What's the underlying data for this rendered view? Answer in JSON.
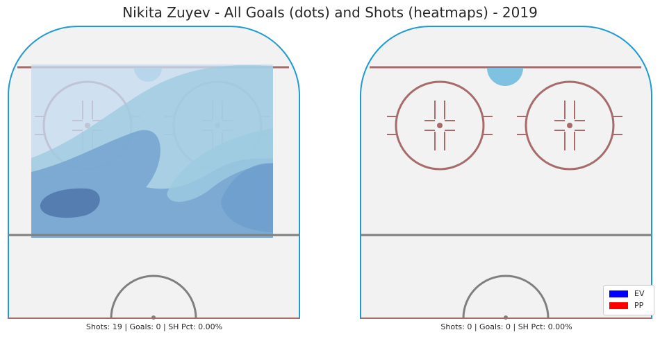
{
  "chart_data": {
    "type": "heatmap",
    "title": "Nikita Zuyev - All Goals (dots) and Shots (heatmaps) - 2019",
    "panels": [
      {
        "side": "left",
        "shots": 19,
        "goals": 0,
        "sh_pct": "0.00%",
        "stats_text": "Shots: 19 | Goals: 0 | SH Pct: 0.00%",
        "goal_dots": [],
        "heatmap": "shot-density contours covering offensive zone"
      },
      {
        "side": "right",
        "shots": 0,
        "goals": 0,
        "sh_pct": "0.00%",
        "stats_text": "Shots: 0 | Goals: 0 | SH Pct: 0.00%",
        "goal_dots": [],
        "heatmap": "none"
      }
    ],
    "legend": {
      "placement": "bottom-right",
      "entries": [
        {
          "label": "EV",
          "color": "#0000ff"
        },
        {
          "label": "PP",
          "color": "#ff0000"
        }
      ]
    }
  },
  "colors": {
    "ice": "#f2f2f2",
    "boards": "#1f9bd1",
    "goal_line": "#a86b6b",
    "blue_line": "#7f7f7f",
    "crease": "#7fc1e0",
    "heat_light": "#c6dbef",
    "heat_mid": "#9ecae1",
    "heat_dark": "#6d9ecd",
    "heat_darkest": "#4f76a8"
  }
}
